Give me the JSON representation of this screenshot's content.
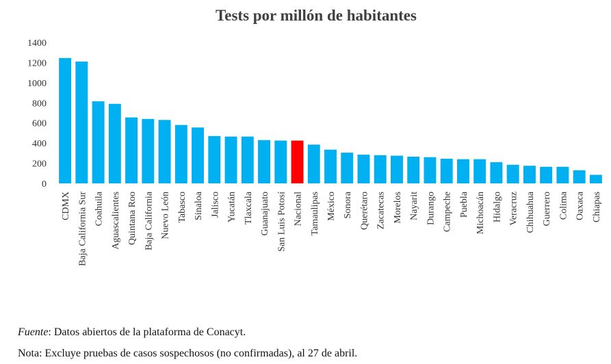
{
  "chart_data": {
    "type": "bar",
    "title": "Tests por millón de habitantes",
    "xlabel": "",
    "ylabel": "",
    "ylim": [
      0,
      1400
    ],
    "yticks": [
      0,
      200,
      400,
      600,
      800,
      1000,
      1200,
      1400
    ],
    "grid": false,
    "legend": "none",
    "colors": {
      "default": "#00b0f0",
      "highlight": "#ff0000"
    },
    "highlight_category": "Nacional",
    "categories": [
      "CDMX",
      "Baja California Sur",
      "Coahuila",
      "Aguascalientes",
      "Quintana Roo",
      "Baja California",
      "Nuevo León",
      "Tabasco",
      "Sinaloa",
      "Jalisco",
      "Yucatán",
      "Tlaxcala",
      "Guanajuato",
      "San Luis Potosí",
      "Nacional",
      "Tamaulipas",
      "México",
      "Sonora",
      "Querétaro",
      "Zacatecas",
      "Morelos",
      "Nayarit",
      "Durango",
      "Campeche",
      "Puebla",
      "Michoacán",
      "Hidalgo",
      "Veracruz",
      "Chihuahua",
      "Guerrero",
      "Colima",
      "Oaxaca",
      "Chiapas"
    ],
    "values": [
      1245,
      1210,
      815,
      790,
      655,
      640,
      630,
      580,
      555,
      470,
      465,
      465,
      430,
      425,
      425,
      385,
      335,
      305,
      285,
      280,
      275,
      265,
      260,
      245,
      240,
      240,
      210,
      185,
      175,
      165,
      165,
      130,
      85
    ]
  },
  "footnotes": {
    "source_label": "Fuente",
    "source_text": ": Datos abiertos de la plataforma de Conacyt.",
    "note_text": "Nota: Excluye pruebas de casos sospechosos (no confirmadas), al 27 de abril."
  }
}
